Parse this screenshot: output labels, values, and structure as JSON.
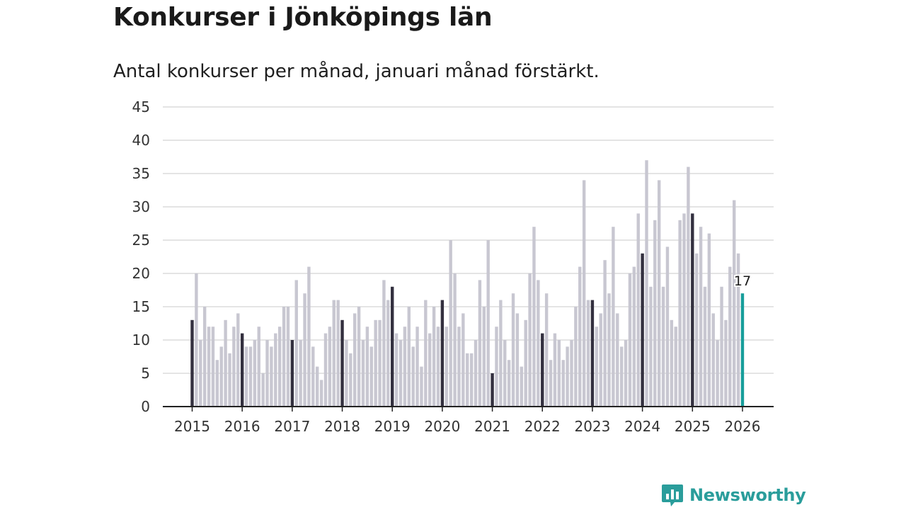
{
  "header": {
    "title": "Konkurser i Jönköpings län",
    "subtitle": "Antal konkurser per månad, januari månad förstärkt."
  },
  "brand": {
    "name": "Newsworthy"
  },
  "colors": {
    "january": "#33303f",
    "month": "#c8c7d1",
    "latest": "#179e9b",
    "grid": "#dcdcdc",
    "axis": "#222222"
  },
  "chart_data": {
    "type": "bar",
    "title": "Konkurser i Jönköpings län",
    "subtitle": "Antal konkurser per månad, januari månad förstärkt.",
    "xlabel": "",
    "ylabel": "",
    "ylim": [
      0,
      45
    ],
    "yticks": [
      "0",
      "5",
      "10",
      "15",
      "20",
      "25",
      "30",
      "35",
      "40",
      "45"
    ],
    "xticks": [
      "2015",
      "2016",
      "2017",
      "2018",
      "2019",
      "2020",
      "2021",
      "2022",
      "2023",
      "2024",
      "2025",
      "2026"
    ],
    "start": "2015-01",
    "highlight": "January bars darker; latest month highlighted",
    "latest_label": "17",
    "values": [
      13,
      20,
      10,
      15,
      12,
      12,
      7,
      9,
      13,
      8,
      12,
      14,
      11,
      9,
      9,
      10,
      12,
      5,
      10,
      9,
      11,
      12,
      15,
      15,
      10,
      19,
      10,
      17,
      21,
      9,
      6,
      4,
      11,
      12,
      16,
      16,
      13,
      10,
      8,
      14,
      15,
      10,
      12,
      9,
      13,
      13,
      19,
      16,
      18,
      11,
      10,
      12,
      15,
      9,
      12,
      6,
      16,
      11,
      15,
      12,
      16,
      12,
      25,
      20,
      12,
      14,
      8,
      8,
      10,
      19,
      15,
      25,
      5,
      12,
      16,
      10,
      7,
      17,
      14,
      6,
      13,
      20,
      27,
      19,
      11,
      17,
      7,
      11,
      10,
      7,
      9,
      10,
      15,
      21,
      34,
      16,
      16,
      12,
      14,
      22,
      17,
      27,
      14,
      9,
      10,
      20,
      21,
      29,
      23,
      37,
      18,
      28,
      34,
      18,
      24,
      13,
      12,
      28,
      29,
      36,
      29,
      23,
      27,
      18,
      26,
      14,
      10,
      18,
      13,
      21,
      31,
      23,
      17
    ]
  }
}
